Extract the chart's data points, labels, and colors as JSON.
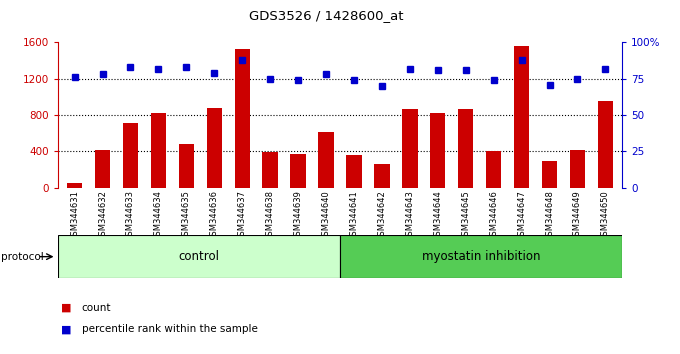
{
  "title": "GDS3526 / 1428600_at",
  "categories": [
    "GSM344631",
    "GSM344632",
    "GSM344633",
    "GSM344634",
    "GSM344635",
    "GSM344636",
    "GSM344637",
    "GSM344638",
    "GSM344639",
    "GSM344640",
    "GSM344641",
    "GSM344642",
    "GSM344643",
    "GSM344644",
    "GSM344645",
    "GSM344646",
    "GSM344647",
    "GSM344648",
    "GSM344649",
    "GSM344650"
  ],
  "bar_values": [
    50,
    420,
    710,
    820,
    480,
    880,
    1530,
    390,
    370,
    610,
    360,
    260,
    870,
    820,
    870,
    400,
    1560,
    290,
    420,
    950
  ],
  "dot_values": [
    76,
    78,
    83,
    82,
    83,
    79,
    88,
    75,
    74,
    78,
    74,
    70,
    82,
    81,
    81,
    74,
    88,
    71,
    75,
    82
  ],
  "bar_color": "#cc0000",
  "dot_color": "#0000cc",
  "left_ylim": [
    0,
    1600
  ],
  "right_ylim": [
    0,
    100
  ],
  "left_yticks": [
    0,
    400,
    800,
    1200,
    1600
  ],
  "right_yticks": [
    0,
    25,
    50,
    75,
    100
  ],
  "right_yticklabels": [
    "0",
    "25",
    "50",
    "75",
    "100%"
  ],
  "grid_values": [
    400,
    800,
    1200
  ],
  "control_count": 10,
  "myostatin_count": 10,
  "control_label": "control",
  "myostatin_label": "myostatin inhibition",
  "protocol_label": "protocol",
  "legend_bar": "count",
  "legend_dot": "percentile rank within the sample",
  "control_color": "#ccffcc",
  "myostatin_color": "#55cc55",
  "xtick_bg_color": "#d0d0d0",
  "bg_color": "#ffffff"
}
